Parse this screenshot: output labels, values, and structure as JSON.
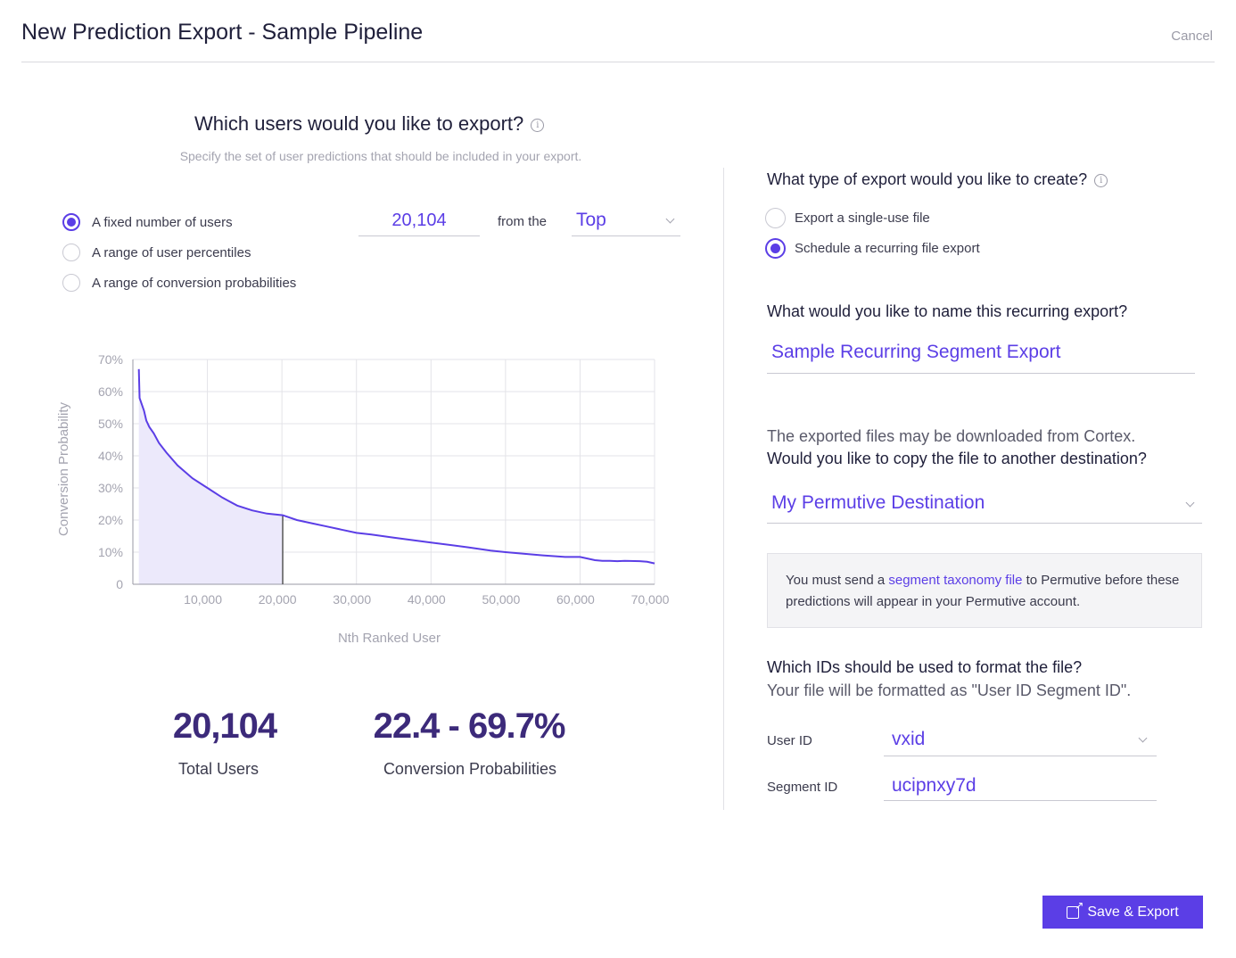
{
  "header": {
    "title": "New Prediction Export - Sample Pipeline",
    "cancel_label": "Cancel"
  },
  "left": {
    "question": "Which users would you like to export?",
    "subtitle": "Specify the set of user predictions that should be included in your export.",
    "options": [
      {
        "label": "A fixed number of users",
        "selected": true
      },
      {
        "label": "A range of user percentiles",
        "selected": false
      },
      {
        "label": "A range of conversion probabilities",
        "selected": false
      }
    ],
    "count_value": "20,104",
    "from_label": "from the",
    "direction_value": "Top",
    "stats": {
      "total_users": "20,104",
      "total_users_label": "Total Users",
      "probabilities": "22.4 - 69.7%",
      "probabilities_label": "Conversion Probabilities"
    }
  },
  "chart_data": {
    "type": "area",
    "xlabel": "Nth Ranked User",
    "ylabel": "Conversion Probability",
    "xlim": [
      0,
      70000
    ],
    "ylim": [
      0,
      70
    ],
    "x_ticks": [
      "10,000",
      "20,000",
      "30,000",
      "40,000",
      "50,000",
      "60,000",
      "70,000"
    ],
    "y_ticks": [
      "0",
      "10%",
      "20%",
      "30%",
      "40%",
      "50%",
      "60%",
      "70%"
    ],
    "grid": true,
    "selected_up_to_x": 20104,
    "colors": {
      "line": "#5b3ee6",
      "fill": "#ece9fb",
      "marker": "#555555"
    },
    "x": [
      800,
      900,
      1200,
      1500,
      1800,
      2200,
      2800,
      3500,
      4500,
      6000,
      8000,
      10000,
      12000,
      14000,
      16000,
      18000,
      20104,
      22000,
      24000,
      26000,
      28000,
      30000,
      32000,
      35000,
      40000,
      45000,
      48000,
      50000,
      55000,
      58000,
      60000,
      62000,
      63000,
      64000,
      65000,
      66000,
      68000,
      69000,
      70000
    ],
    "y": [
      67,
      58,
      56,
      54,
      51,
      49,
      47,
      44,
      41,
      37,
      33,
      30,
      27,
      24.5,
      23,
      22,
      21.5,
      20,
      19,
      18,
      17,
      16,
      15.5,
      14.5,
      13,
      11.5,
      10.5,
      10,
      9,
      8.5,
      8.5,
      7.5,
      7.3,
      7.3,
      7.2,
      7.3,
      7.2,
      7,
      6.5
    ]
  },
  "right": {
    "type_question": "What type of export would you like to create?",
    "type_options": [
      {
        "label": "Export a single-use file",
        "selected": false
      },
      {
        "label": "Schedule a recurring file export",
        "selected": true
      }
    ],
    "name_question": "What would you like to name this recurring export?",
    "name_value": "Sample Recurring Segment Export",
    "dest_line1": "The exported files may be downloaded from Cortex.",
    "dest_line2": "Would you like to copy the file to another destination?",
    "destination_value": "My Permutive Destination",
    "notice_prefix": "You must send a",
    "notice_link": "segment taxonomy file",
    "notice_suffix": "to Permutive before these predictions will appear in your Permutive account.",
    "ids_question": "Which IDs should be used to format the file?",
    "ids_sub": "Your file will be formatted as \"User ID Segment ID\".",
    "user_id_label": "User ID",
    "user_id_value": "vxid",
    "segment_id_label": "Segment ID",
    "segment_id_value": "ucipnxy7d",
    "save_label": "Save & Export"
  }
}
